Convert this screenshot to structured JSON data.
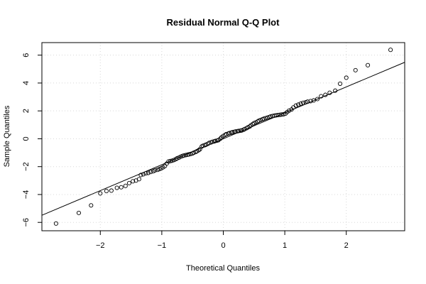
{
  "chart_data": {
    "type": "scatter",
    "title": "Residual Normal Q-Q Plot",
    "xlabel": "Theoretical Quantiles",
    "ylabel": "Sample Quantiles",
    "xlim": [
      -2.95,
      2.95
    ],
    "ylim": [
      -6.6,
      6.9
    ],
    "xticks": [
      -2,
      -1,
      0,
      1,
      2
    ],
    "yticks": [
      -6,
      -4,
      -2,
      0,
      2,
      4,
      6
    ],
    "grid": true,
    "reference_line": {
      "slope": 1.86,
      "intercept": 0.0
    },
    "points": [
      [
        -2.72,
        -6.08
      ],
      [
        -2.35,
        -5.32
      ],
      [
        -2.15,
        -4.78
      ],
      [
        -2.0,
        -3.92
      ],
      [
        -1.9,
        -3.75
      ],
      [
        -1.82,
        -3.72
      ],
      [
        -1.73,
        -3.52
      ],
      [
        -1.66,
        -3.48
      ],
      [
        -1.59,
        -3.38
      ],
      [
        -1.53,
        -3.18
      ],
      [
        -1.47,
        -3.05
      ],
      [
        -1.42,
        -3.0
      ],
      [
        -1.37,
        -2.9
      ],
      [
        -1.34,
        -2.6
      ],
      [
        -1.3,
        -2.55
      ],
      [
        -1.26,
        -2.48
      ],
      [
        -1.22,
        -2.45
      ],
      [
        -1.18,
        -2.38
      ],
      [
        -1.14,
        -2.33
      ],
      [
        -1.11,
        -2.27
      ],
      [
        -1.07,
        -2.23
      ],
      [
        -1.04,
        -2.18
      ],
      [
        -1.01,
        -2.12
      ],
      [
        -0.98,
        -2.05
      ],
      [
        -0.95,
        -1.96
      ],
      [
        -0.92,
        -1.78
      ],
      [
        -0.89,
        -1.63
      ],
      [
        -0.86,
        -1.6
      ],
      [
        -0.83,
        -1.57
      ],
      [
        -0.8,
        -1.52
      ],
      [
        -0.77,
        -1.46
      ],
      [
        -0.75,
        -1.4
      ],
      [
        -0.72,
        -1.35
      ],
      [
        -0.69,
        -1.28
      ],
      [
        -0.66,
        -1.23
      ],
      [
        -0.64,
        -1.2
      ],
      [
        -0.61,
        -1.17
      ],
      [
        -0.58,
        -1.14
      ],
      [
        -0.56,
        -1.12
      ],
      [
        -0.53,
        -1.09
      ],
      [
        -0.5,
        -1.05
      ],
      [
        -0.48,
        -1.0
      ],
      [
        -0.45,
        -0.95
      ],
      [
        -0.43,
        -0.9
      ],
      [
        -0.4,
        -0.82
      ],
      [
        -0.38,
        -0.75
      ],
      [
        -0.35,
        -0.55
      ],
      [
        -0.33,
        -0.5
      ],
      [
        -0.3,
        -0.46
      ],
      [
        -0.28,
        -0.42
      ],
      [
        -0.25,
        -0.36
      ],
      [
        -0.23,
        -0.3
      ],
      [
        -0.2,
        -0.26
      ],
      [
        -0.18,
        -0.22
      ],
      [
        -0.15,
        -0.19
      ],
      [
        -0.13,
        -0.16
      ],
      [
        -0.1,
        -0.13
      ],
      [
        -0.08,
        -0.1
      ],
      [
        -0.05,
        0.0
      ],
      [
        -0.03,
        0.1
      ],
      [
        0.0,
        0.2
      ],
      [
        0.03,
        0.28
      ],
      [
        0.05,
        0.33
      ],
      [
        0.08,
        0.37
      ],
      [
        0.1,
        0.41
      ],
      [
        0.13,
        0.44
      ],
      [
        0.15,
        0.47
      ],
      [
        0.18,
        0.5
      ],
      [
        0.2,
        0.52
      ],
      [
        0.23,
        0.54
      ],
      [
        0.25,
        0.56
      ],
      [
        0.28,
        0.58
      ],
      [
        0.3,
        0.6
      ],
      [
        0.33,
        0.65
      ],
      [
        0.35,
        0.7
      ],
      [
        0.38,
        0.76
      ],
      [
        0.4,
        0.82
      ],
      [
        0.43,
        0.88
      ],
      [
        0.45,
        0.97
      ],
      [
        0.48,
        1.05
      ],
      [
        0.5,
        1.12
      ],
      [
        0.53,
        1.18
      ],
      [
        0.56,
        1.24
      ],
      [
        0.58,
        1.3
      ],
      [
        0.61,
        1.35
      ],
      [
        0.64,
        1.4
      ],
      [
        0.66,
        1.44
      ],
      [
        0.69,
        1.48
      ],
      [
        0.72,
        1.52
      ],
      [
        0.75,
        1.56
      ],
      [
        0.77,
        1.6
      ],
      [
        0.8,
        1.63
      ],
      [
        0.83,
        1.66
      ],
      [
        0.86,
        1.68
      ],
      [
        0.89,
        1.7
      ],
      [
        0.92,
        1.72
      ],
      [
        0.95,
        1.74
      ],
      [
        0.98,
        1.76
      ],
      [
        1.01,
        1.8
      ],
      [
        1.04,
        1.92
      ],
      [
        1.07,
        2.02
      ],
      [
        1.11,
        2.1
      ],
      [
        1.14,
        2.25
      ],
      [
        1.18,
        2.38
      ],
      [
        1.22,
        2.45
      ],
      [
        1.26,
        2.52
      ],
      [
        1.3,
        2.58
      ],
      [
        1.34,
        2.62
      ],
      [
        1.37,
        2.66
      ],
      [
        1.42,
        2.7
      ],
      [
        1.47,
        2.75
      ],
      [
        1.53,
        2.85
      ],
      [
        1.59,
        3.05
      ],
      [
        1.66,
        3.15
      ],
      [
        1.73,
        3.3
      ],
      [
        1.82,
        3.45
      ],
      [
        1.9,
        3.95
      ],
      [
        2.0,
        4.38
      ],
      [
        2.15,
        4.92
      ],
      [
        2.35,
        5.28
      ],
      [
        2.72,
        6.38
      ]
    ]
  }
}
